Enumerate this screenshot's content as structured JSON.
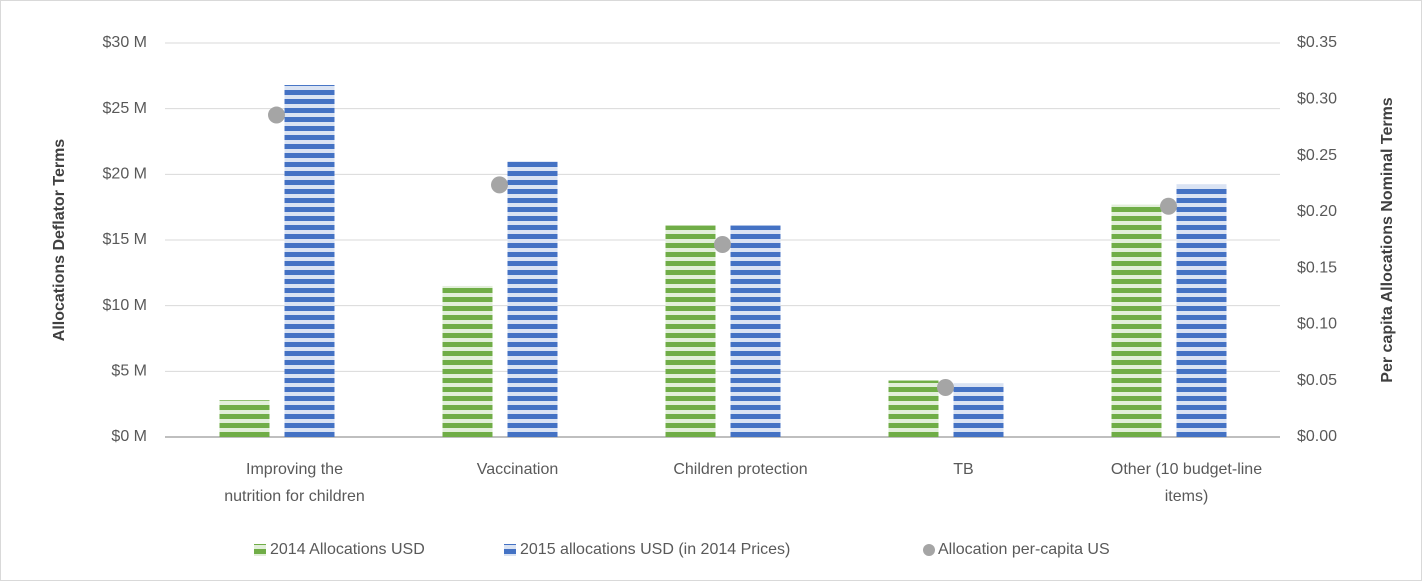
{
  "chart_data": {
    "type": "bar",
    "categories": [
      "Improving the nutrition for children",
      "Vaccination",
      "Children protection",
      "TB",
      "Other (10 budget-line items)"
    ],
    "series": [
      {
        "name": "2014 Allocations USD",
        "color": "#70ad47",
        "values": [
          2.8,
          11.5,
          16.1,
          4.3,
          17.7
        ]
      },
      {
        "name": "2015 allocations USD (in 2014 Prices)",
        "color": "#4472c4",
        "values": [
          26.8,
          21.0,
          16.1,
          4.1,
          19.2
        ]
      },
      {
        "name": "Allocation per-capita US",
        "color": "#a5a5a5",
        "axis": "y2",
        "type": "scatter",
        "values": [
          0.286,
          0.224,
          0.171,
          0.044,
          0.205
        ]
      }
    ],
    "ylabel": "Allocations Deflator Terms",
    "y2label": "Per capita Allocations Nominal Terms",
    "ylim": [
      0,
      30
    ],
    "yticks": [
      {
        "value": 0,
        "label": "$0 M"
      },
      {
        "value": 5,
        "label": "$5 M"
      },
      {
        "value": 10,
        "label": "$10 M"
      },
      {
        "value": 15,
        "label": "$15 M"
      },
      {
        "value": 20,
        "label": "$20 M"
      },
      {
        "value": 25,
        "label": "$25 M"
      },
      {
        "value": 30,
        "label": "$30 M"
      }
    ],
    "y2lim": [
      0,
      0.35
    ],
    "y2ticks": [
      {
        "value": 0,
        "label": "$0.00"
      },
      {
        "value": 0.05,
        "label": "$0.05"
      },
      {
        "value": 0.1,
        "label": "$0.10"
      },
      {
        "value": 0.15,
        "label": "$0.15"
      },
      {
        "value": 0.2,
        "label": "$0.20"
      },
      {
        "value": 0.25,
        "label": "$0.25"
      },
      {
        "value": 0.3,
        "label": "$0.30"
      },
      {
        "value": 0.35,
        "label": "$0.35"
      }
    ],
    "grid": true,
    "legend": "bottom"
  }
}
